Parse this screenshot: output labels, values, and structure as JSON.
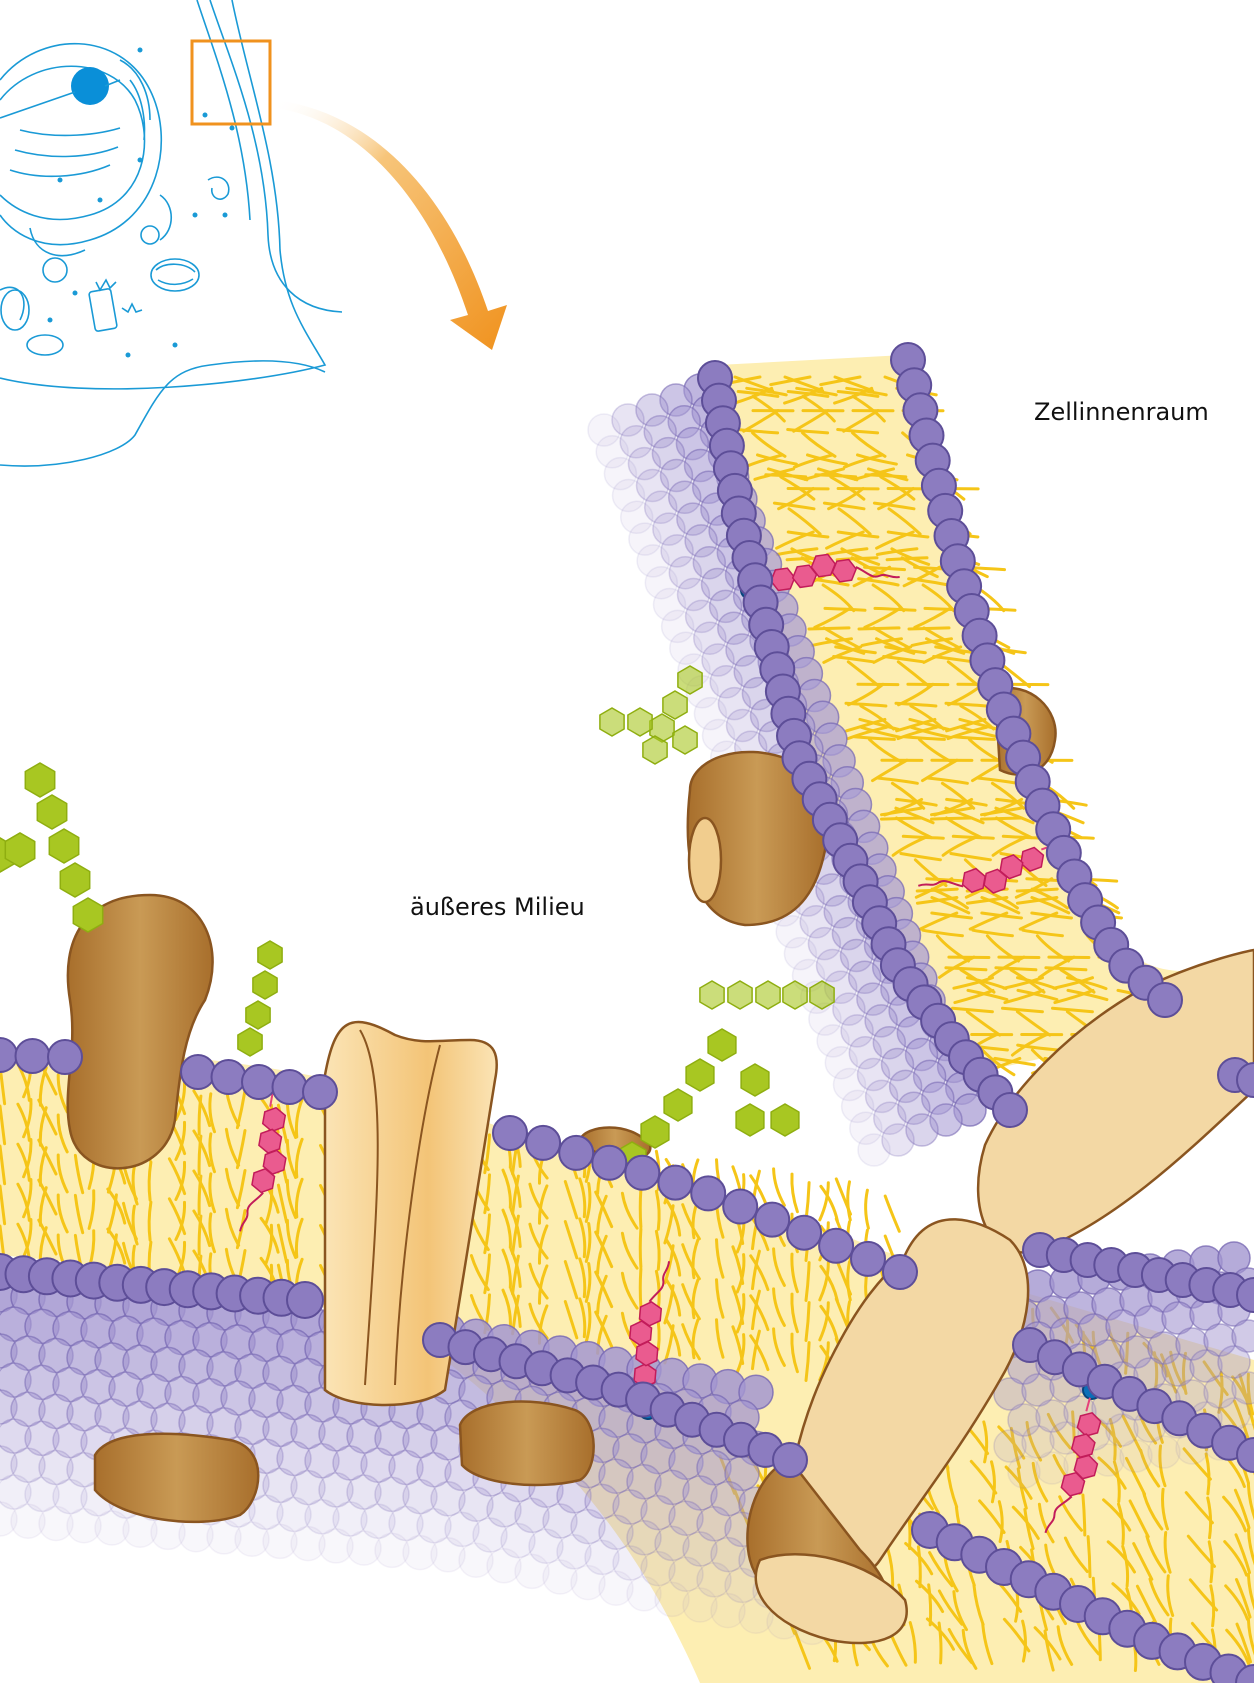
{
  "labels": {
    "cell_interior": "Zellinnenraum",
    "external_medium": "äußeres Milieu"
  },
  "icons": [
    "cell-outline-icon",
    "zoom-box-icon",
    "zoom-arrow-icon",
    "cholesterol-icon",
    "glycan-chain-icon",
    "membrane-protein-icon"
  ],
  "colors": {
    "cell_outline": "#1a9ad6",
    "nucleolus": "#0a8fd8",
    "zoom_box": "#f0921e",
    "lipid_head": "#8c7cc0",
    "lipid_head_stroke": "#5d4e98",
    "lipid_tail": "#f5c518",
    "membrane_core": "#fdeeb2",
    "protein": "#b8823c",
    "protein_light": "#f1cd8e",
    "cholesterol": "#e5417a",
    "glycan": "#a8c722"
  }
}
